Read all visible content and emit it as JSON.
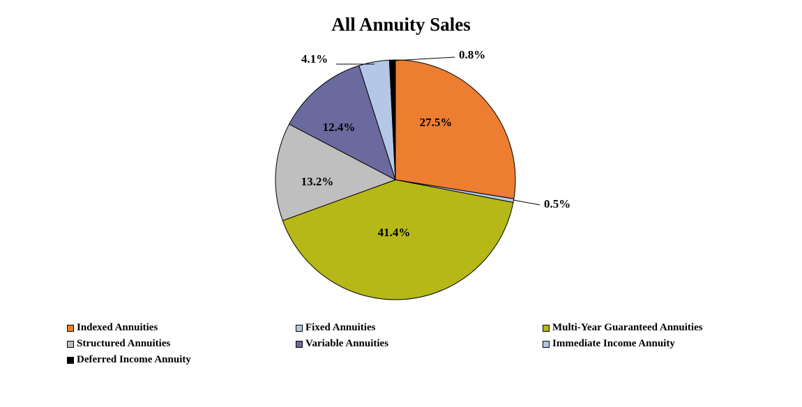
{
  "chart_data": {
    "type": "pie",
    "title": "All Annuity Sales",
    "slices": [
      {
        "name": "Indexed Annuities",
        "value": 27.5,
        "label": "27.5%",
        "color": "#ED7D31"
      },
      {
        "name": "Fixed Annuities",
        "value": 0.5,
        "label": "0.5%",
        "color": "#B4C7E7"
      },
      {
        "name": "Multi-Year Guaranteed Annuities",
        "value": 41.4,
        "label": "41.4%",
        "color": "#B5B816"
      },
      {
        "name": "Structured Annuities",
        "value": 13.2,
        "label": "13.2%",
        "color": "#BFBFBF"
      },
      {
        "name": "Variable Annuities",
        "value": 12.4,
        "label": "12.4%",
        "color": "#6A6A9E"
      },
      {
        "name": "Immediate Income Annuity",
        "value": 4.1,
        "label": "4.1%",
        "color": "#B4C7E7"
      },
      {
        "name": "Deferred Income Annuity",
        "value": 0.8,
        "label": "0.8%",
        "color": "#000000"
      }
    ],
    "legend_position": "bottom",
    "start_angle": "12 o'clock, clockwise"
  }
}
